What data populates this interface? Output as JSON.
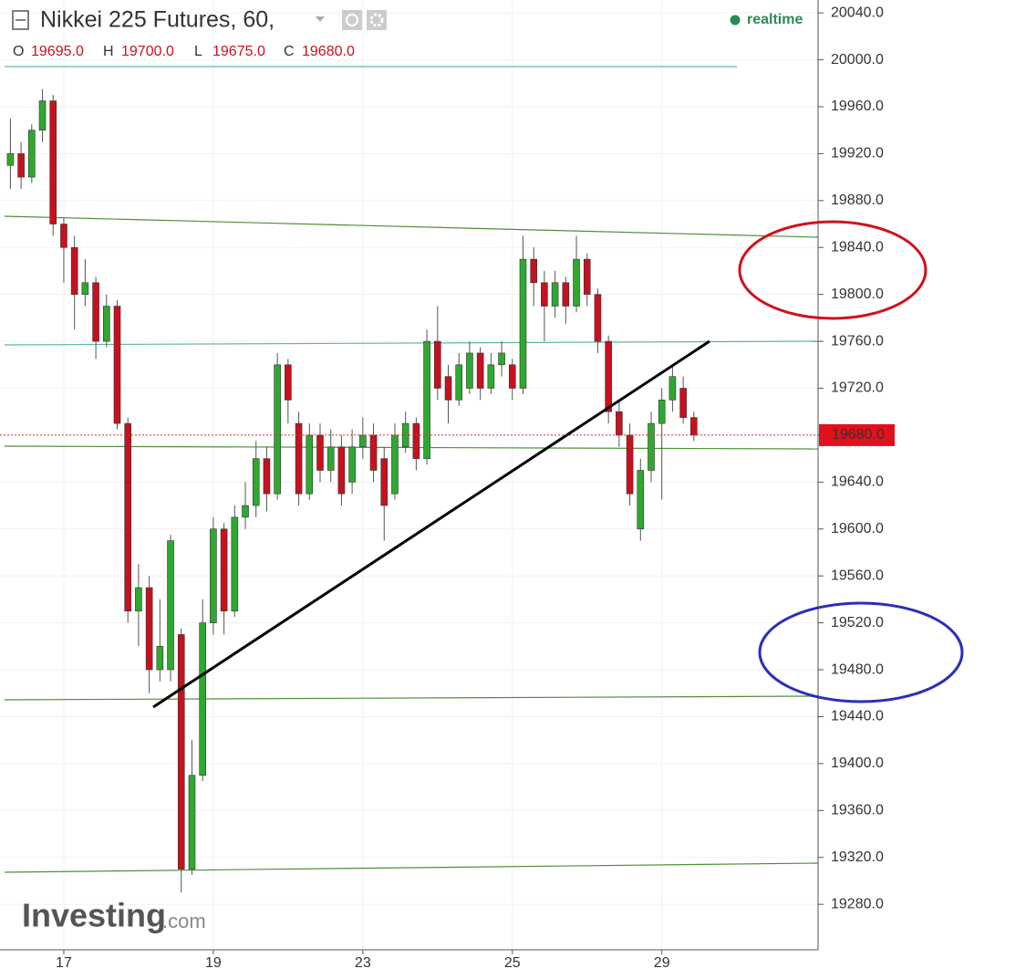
{
  "chart_data": {
    "type": "candlestick",
    "title": "Nikkei 225 Futures, 60,",
    "status": "realtime",
    "ohlc_legend": [
      {
        "label": "O",
        "value": "19695.0"
      },
      {
        "label": "H",
        "value": "19700.0"
      },
      {
        "label": "L",
        "value": "19675.0"
      },
      {
        "label": "C",
        "value": "19680.0"
      }
    ],
    "watermark": "Investing",
    "watermark_suffix": ".com",
    "categories": [
      null,
      null,
      null,
      null,
      null,
      "17",
      null,
      null,
      null,
      null,
      null,
      null,
      null,
      null,
      null,
      null,
      null,
      null,
      null,
      "19",
      null,
      null,
      null,
      null,
      null,
      null,
      null,
      null,
      null,
      null,
      null,
      null,
      null,
      "23",
      null,
      null,
      null,
      null,
      null,
      null,
      null,
      null,
      null,
      null,
      null,
      null,
      null,
      "25",
      null,
      null,
      null,
      null,
      null,
      null,
      null,
      null,
      null,
      null,
      null,
      null,
      null,
      "29",
      null,
      null,
      null
    ],
    "open": [
      19910,
      19920,
      19900,
      19940,
      19965,
      19860,
      19840,
      19800,
      19810,
      19760,
      19790,
      19690,
      19530,
      19550,
      19480,
      19480,
      19510,
      19310,
      19390,
      19520,
      19600,
      19530,
      19610,
      19620,
      19660,
      19630,
      19740,
      19690,
      19630,
      19680,
      19650,
      19670,
      19640,
      19670,
      19680,
      19660,
      19630,
      19670,
      19690,
      19660,
      19760,
      19730,
      19710,
      19720,
      19750,
      19720,
      19740,
      19740,
      19720,
      19830,
      19810,
      19790,
      19810,
      19790,
      19830,
      19800,
      19760,
      19700,
      19680,
      19600,
      19650,
      19690,
      19710,
      19720,
      19695
    ],
    "high": [
      19950,
      19930,
      19945,
      19975,
      19970,
      19865,
      19850,
      19830,
      19815,
      19800,
      19795,
      19695,
      19570,
      19560,
      19540,
      19595,
      19515,
      19420,
      19540,
      19610,
      19605,
      19620,
      19640,
      19675,
      19670,
      19750,
      19745,
      19700,
      19690,
      19690,
      19685,
      19680,
      19685,
      19695,
      19690,
      19670,
      19690,
      19700,
      19695,
      19770,
      19790,
      19740,
      19750,
      19760,
      19755,
      19750,
      19760,
      19745,
      19850,
      19840,
      19820,
      19820,
      19815,
      19850,
      19835,
      19805,
      19765,
      19710,
      19690,
      19660,
      19700,
      19720,
      19740,
      19730,
      19700
    ],
    "low": [
      19890,
      19890,
      19895,
      19930,
      19850,
      19810,
      19770,
      19790,
      19745,
      19755,
      19685,
      19520,
      19500,
      19460,
      19470,
      19470,
      19290,
      19305,
      19385,
      19510,
      19510,
      19525,
      19600,
      19610,
      19615,
      19625,
      19690,
      19620,
      19625,
      19640,
      19640,
      19620,
      19630,
      19660,
      19640,
      19590,
      19625,
      19665,
      19650,
      19655,
      19710,
      19690,
      19705,
      19715,
      19710,
      19715,
      19730,
      19710,
      19715,
      19790,
      19760,
      19780,
      19775,
      19785,
      19790,
      19750,
      19690,
      19670,
      19620,
      19590,
      19640,
      19625,
      19700,
      19690,
      19675
    ],
    "close": [
      19920,
      19900,
      19940,
      19965,
      19860,
      19840,
      19800,
      19810,
      19760,
      19790,
      19690,
      19530,
      19550,
      19480,
      19500,
      19590,
      19310,
      19390,
      19520,
      19600,
      19530,
      19610,
      19620,
      19660,
      19630,
      19740,
      19710,
      19630,
      19680,
      19650,
      19670,
      19630,
      19670,
      19680,
      19650,
      19620,
      19680,
      19690,
      19660,
      19760,
      19720,
      19710,
      19740,
      19750,
      19720,
      19740,
      19750,
      19720,
      19830,
      19810,
      19790,
      19810,
      19790,
      19830,
      19800,
      19760,
      19700,
      19680,
      19630,
      19650,
      19690,
      19710,
      19730,
      19695,
      19680
    ],
    "up_color": "#2fa82f",
    "down_color": "#c8101e",
    "ylim": [
      19242,
      20051
    ],
    "yticks": [
      {
        "value": 20040,
        "label": "20040.0"
      },
      {
        "value": 20000,
        "label": "20000.0"
      },
      {
        "value": 19960,
        "label": "19960.0"
      },
      {
        "value": 19920,
        "label": "19920.0"
      },
      {
        "value": 19880,
        "label": "19880.0"
      },
      {
        "value": 19840,
        "label": "19840.0"
      },
      {
        "value": 19800,
        "label": "19800.0"
      },
      {
        "value": 19760,
        "label": "19760.0"
      },
      {
        "value": 19720,
        "label": "19720.0"
      },
      {
        "value": 19680,
        "label": "19680.0"
      },
      {
        "value": 19640,
        "label": "19640.0"
      },
      {
        "value": 19600,
        "label": "19600.0"
      },
      {
        "value": 19560,
        "label": "19560.0"
      },
      {
        "value": 19520,
        "label": "19520.0"
      },
      {
        "value": 19480,
        "label": "19480.0"
      },
      {
        "value": 19440,
        "label": "19440.0"
      },
      {
        "value": 19400,
        "label": "19400.0"
      },
      {
        "value": 19360,
        "label": "19360.0"
      },
      {
        "value": 19320,
        "label": "19320.0"
      },
      {
        "value": 19280,
        "label": "19280.0"
      }
    ],
    "last_price": {
      "value": 19680,
      "label": "19680.0"
    },
    "grid": true
  }
}
